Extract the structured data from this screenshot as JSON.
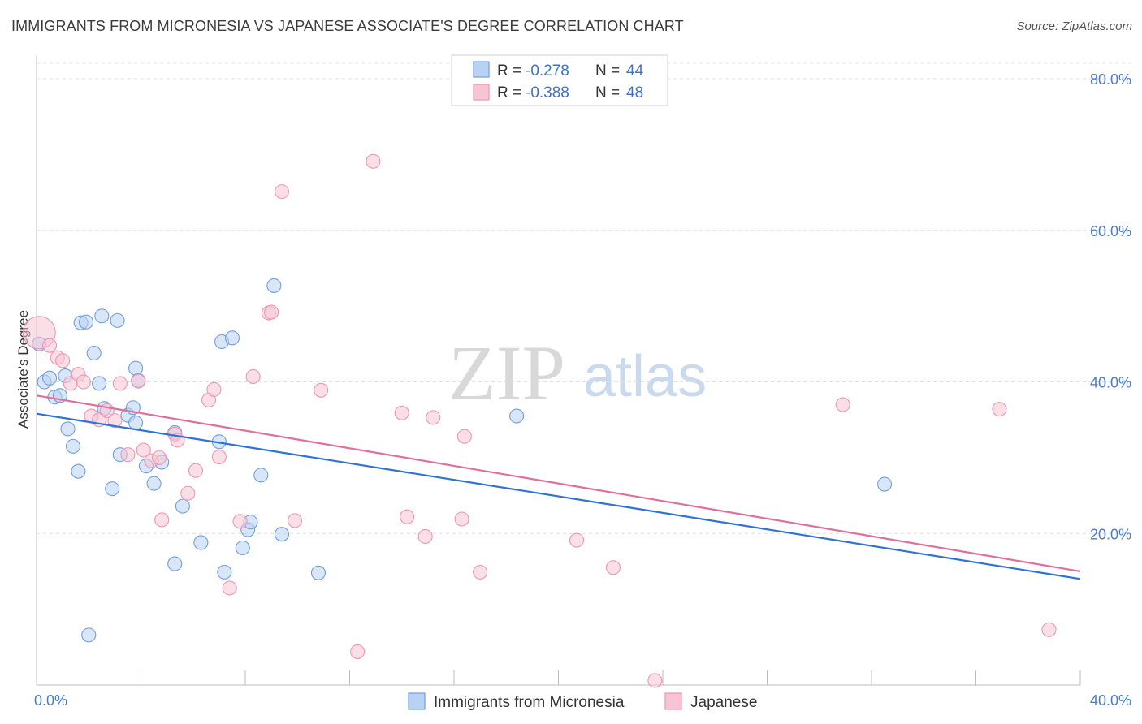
{
  "header": {
    "title": "IMMIGRANTS FROM MICRONESIA VS JAPANESE ASSOCIATE'S DEGREE CORRELATION CHART",
    "source": "Source: ZipAtlas.com"
  },
  "watermark": {
    "zip": "ZIP",
    "atlas": "atlas"
  },
  "legend": {
    "rows": [
      {
        "r_label": "R =",
        "r_value": "-0.278",
        "n_label": "N =",
        "n_value": "44"
      },
      {
        "r_label": "R =",
        "r_value": "-0.388",
        "n_label": "N =",
        "n_value": "48"
      }
    ]
  },
  "chart_data": {
    "type": "scatter",
    "xlabel": "",
    "ylabel": "Associate's Degree",
    "xlim": [
      0,
      40
    ],
    "ylim": [
      0,
      80
    ],
    "x_tick_labels": [
      "0.0%",
      "40.0%"
    ],
    "y_ticks": [
      20,
      40,
      60,
      80
    ],
    "y_tick_labels": [
      "20.0%",
      "40.0%",
      "60.0%",
      "80.0%"
    ],
    "grid": "horizontal dashed",
    "series": [
      {
        "name": "Immigrants from Micronesia",
        "color": "#6f9fe0",
        "fill": "#b9d1f3",
        "trend_color": "#2f72d6",
        "trend": [
          [
            0,
            35.8
          ],
          [
            40,
            14.0
          ]
        ],
        "points": [
          [
            0.1,
            45.0
          ],
          [
            0.3,
            40.0
          ],
          [
            0.5,
            40.5
          ],
          [
            0.7,
            38.0
          ],
          [
            0.9,
            38.2
          ],
          [
            1.1,
            40.8
          ],
          [
            1.2,
            33.8
          ],
          [
            1.4,
            31.5
          ],
          [
            1.6,
            28.2
          ],
          [
            1.7,
            47.8
          ],
          [
            1.9,
            47.9
          ],
          [
            2.2,
            43.8
          ],
          [
            2.4,
            39.8
          ],
          [
            2.5,
            48.7
          ],
          [
            2.6,
            36.5
          ],
          [
            2.9,
            25.9
          ],
          [
            3.1,
            48.1
          ],
          [
            3.2,
            30.4
          ],
          [
            3.5,
            35.6
          ],
          [
            3.7,
            36.6
          ],
          [
            3.8,
            41.8
          ],
          [
            3.9,
            40.2
          ],
          [
            4.2,
            28.9
          ],
          [
            4.5,
            26.6
          ],
          [
            4.8,
            29.4
          ],
          [
            5.3,
            33.3
          ],
          [
            5.6,
            23.6
          ],
          [
            2.0,
            6.6
          ],
          [
            5.3,
            16.0
          ],
          [
            6.3,
            18.8
          ],
          [
            7.0,
            32.1
          ],
          [
            7.1,
            45.3
          ],
          [
            7.5,
            45.8
          ],
          [
            7.2,
            14.9
          ],
          [
            7.9,
            18.1
          ],
          [
            8.1,
            20.5
          ],
          [
            8.2,
            21.5
          ],
          [
            8.6,
            27.7
          ],
          [
            9.1,
            52.7
          ],
          [
            9.4,
            19.9
          ],
          [
            10.8,
            14.8
          ],
          [
            18.4,
            35.5
          ],
          [
            32.5,
            26.5
          ],
          [
            3.8,
            34.6
          ]
        ]
      },
      {
        "name": "Japanese",
        "color": "#eb97b3",
        "fill": "#f7c4d4",
        "trend_color": "#e0709a",
        "trend": [
          [
            0,
            38.2
          ],
          [
            40,
            15.0
          ]
        ],
        "points": [
          [
            0.1,
            46.5
          ],
          [
            0.5,
            44.8
          ],
          [
            0.8,
            43.2
          ],
          [
            1.0,
            42.8
          ],
          [
            1.3,
            39.8
          ],
          [
            1.6,
            41.0
          ],
          [
            1.8,
            40.0
          ],
          [
            2.1,
            35.5
          ],
          [
            2.4,
            35.0
          ],
          [
            2.7,
            36.2
          ],
          [
            3.0,
            34.9
          ],
          [
            3.2,
            39.8
          ],
          [
            3.5,
            30.4
          ],
          [
            3.9,
            40.1
          ],
          [
            4.1,
            31.0
          ],
          [
            4.4,
            29.6
          ],
          [
            4.7,
            30.0
          ],
          [
            4.8,
            21.8
          ],
          [
            5.3,
            33.1
          ],
          [
            5.4,
            32.3
          ],
          [
            5.8,
            25.3
          ],
          [
            6.1,
            28.3
          ],
          [
            6.6,
            37.6
          ],
          [
            6.8,
            39.0
          ],
          [
            7.0,
            30.1
          ],
          [
            7.4,
            12.8
          ],
          [
            7.8,
            21.6
          ],
          [
            8.3,
            40.7
          ],
          [
            8.9,
            49.1
          ],
          [
            9.0,
            49.2
          ],
          [
            9.4,
            65.1
          ],
          [
            9.9,
            21.7
          ],
          [
            10.9,
            38.9
          ],
          [
            12.3,
            4.4
          ],
          [
            12.9,
            69.1
          ],
          [
            14.0,
            35.9
          ],
          [
            14.2,
            22.2
          ],
          [
            14.9,
            19.6
          ],
          [
            15.2,
            35.3
          ],
          [
            16.3,
            21.9
          ],
          [
            16.4,
            32.8
          ],
          [
            17.0,
            14.9
          ],
          [
            20.7,
            19.1
          ],
          [
            22.1,
            15.5
          ],
          [
            23.7,
            0.6
          ],
          [
            30.9,
            37.0
          ],
          [
            36.9,
            36.4
          ],
          [
            38.8,
            7.3
          ]
        ]
      }
    ]
  }
}
